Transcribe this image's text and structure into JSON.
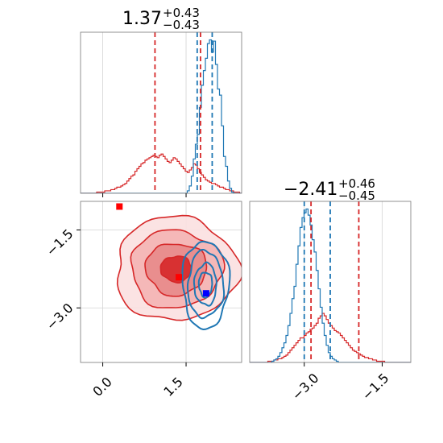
{
  "chart_data": [
    {
      "type": "histogram",
      "panel": "marginal-x",
      "title_main": "1.37",
      "title_sup": "+0.43",
      "title_sub": "−0.43",
      "xlim": [
        -0.4,
        2.5
      ],
      "series": [
        {
          "name": "",
          "color": "#d62728",
          "edges": [
            -0.4,
            2.5
          ],
          "counts": [
            0,
            0,
            0,
            0,
            0,
            0,
            0,
            0,
            1,
            1,
            1,
            1,
            2,
            2,
            2,
            3,
            3,
            4,
            5,
            5,
            6,
            7,
            8,
            10,
            12,
            14,
            15,
            18,
            20,
            22,
            24,
            25,
            27,
            28,
            29,
            30,
            31,
            30,
            29,
            31,
            32,
            30,
            28,
            26,
            25,
            27,
            29,
            28,
            26,
            24,
            22,
            20,
            18,
            17,
            19,
            21,
            24,
            23,
            20,
            17,
            15,
            13,
            11,
            10,
            9,
            8,
            8,
            7,
            6,
            5,
            5,
            4,
            3,
            3,
            2,
            2,
            1,
            1,
            1,
            0
          ]
        },
        {
          "name": "",
          "color": "#1f77b4",
          "edges": [
            -0.4,
            2.5
          ],
          "counts": [
            0,
            0,
            0,
            0,
            0,
            0,
            0,
            0,
            0,
            0,
            0,
            0,
            0,
            0,
            0,
            0,
            0,
            0,
            0,
            0,
            0,
            0,
            0,
            0,
            0,
            0,
            0,
            0,
            0,
            0,
            0,
            0,
            0,
            0,
            0,
            0,
            0,
            0,
            0,
            0,
            0,
            0,
            0,
            0,
            0,
            0,
            0,
            0,
            0,
            0,
            0,
            0,
            0,
            2,
            6,
            14,
            28,
            40,
            48,
            70,
            88,
            100,
            110,
            122,
            125,
            115,
            124,
            105,
            85,
            80,
            55,
            30,
            22,
            10,
            4,
            1,
            0,
            0,
            0,
            0
          ]
        }
      ],
      "vlines": [
        {
          "x": 0.94,
          "color": "#d62728"
        },
        {
          "x": 1.76,
          "color": "#d62728"
        },
        {
          "x": 1.7,
          "color": "#1f77b4"
        },
        {
          "x": 1.97,
          "color": "#1f77b4"
        }
      ],
      "xticks": [
        0.0,
        1.5
      ]
    },
    {
      "type": "contour",
      "panel": "joint",
      "xlim": [
        -0.4,
        2.5
      ],
      "ylim": [
        -4.05,
        -0.95
      ],
      "xtick_labels": [
        "0.0",
        "1.5"
      ],
      "xticks": [
        0.0,
        1.5
      ],
      "ytick_labels": [
        "−1.5",
        "−3.0"
      ],
      "yticks": [
        -1.5,
        -3.0
      ],
      "series": [
        {
          "name": "",
          "color": "#d62728",
          "center": [
            1.32,
            -2.25
          ],
          "sigma": [
            0.55,
            0.5
          ],
          "levels": [
            0.5,
            1.0,
            1.5,
            2.0
          ]
        },
        {
          "name": "",
          "color": "#1f77b4",
          "center": [
            1.85,
            -2.55
          ],
          "sigma": [
            0.2,
            0.4
          ],
          "levels": [
            0.6,
            1.0,
            1.6,
            2.1
          ]
        }
      ],
      "markers": [
        {
          "x": 0.3,
          "y": -1.05,
          "color": "#ff0000"
        },
        {
          "x": 1.37,
          "y": -2.41,
          "color": "#ff0000"
        },
        {
          "x": 1.86,
          "y": -2.72,
          "color": "#0000ff"
        }
      ]
    },
    {
      "type": "histogram",
      "panel": "marginal-y",
      "title_main": "−2.41",
      "title_sup": "+0.46",
      "title_sub": "−0.45",
      "xlim": [
        -4.05,
        -0.95
      ],
      "xtick_labels": [
        "−3.0",
        "−1.5"
      ],
      "xticks": [
        -3.0,
        -1.5
      ],
      "series": [
        {
          "name": "",
          "color": "#d62728",
          "edges": [
            -4.05,
            -0.95
          ],
          "counts": [
            0,
            0,
            0,
            0,
            0,
            0,
            0,
            0,
            0,
            1,
            1,
            1,
            2,
            2,
            3,
            3,
            4,
            5,
            6,
            8,
            10,
            12,
            14,
            16,
            18,
            20,
            20,
            22,
            24,
            25,
            27,
            28,
            30,
            32,
            36,
            38,
            40,
            38,
            35,
            32,
            30,
            28,
            26,
            25,
            24,
            22,
            20,
            18,
            16,
            14,
            12,
            10,
            9,
            8,
            7,
            6,
            5,
            4,
            4,
            3,
            3,
            2,
            2,
            1,
            1,
            1,
            1,
            0,
            0,
            0,
            0,
            0,
            0,
            0,
            0,
            0,
            0,
            0,
            0,
            0
          ]
        },
        {
          "name": "",
          "color": "#1f77b4",
          "edges": [
            -4.05,
            -0.95
          ],
          "counts": [
            0,
            0,
            0,
            0,
            0,
            0,
            0,
            0,
            0,
            0,
            0,
            1,
            2,
            3,
            5,
            8,
            12,
            16,
            22,
            30,
            40,
            52,
            62,
            80,
            95,
            110,
            118,
            122,
            125,
            120,
            112,
            100,
            90,
            75,
            60,
            45,
            32,
            22,
            14,
            8,
            5,
            3,
            2,
            1,
            0,
            0,
            0,
            0,
            0,
            0,
            0,
            0,
            0,
            0,
            0,
            0,
            0,
            0,
            0,
            0,
            0,
            0,
            0,
            0,
            0,
            0,
            0,
            0,
            0,
            0,
            0,
            0,
            0,
            0,
            0,
            0,
            0,
            0,
            0,
            0
          ]
        }
      ],
      "vlines": [
        {
          "x": -2.87,
          "color": "#d62728"
        },
        {
          "x": -1.95,
          "color": "#d62728"
        },
        {
          "x": -3.0,
          "color": "#1f77b4"
        },
        {
          "x": -2.5,
          "color": "#1f77b4"
        }
      ]
    }
  ]
}
